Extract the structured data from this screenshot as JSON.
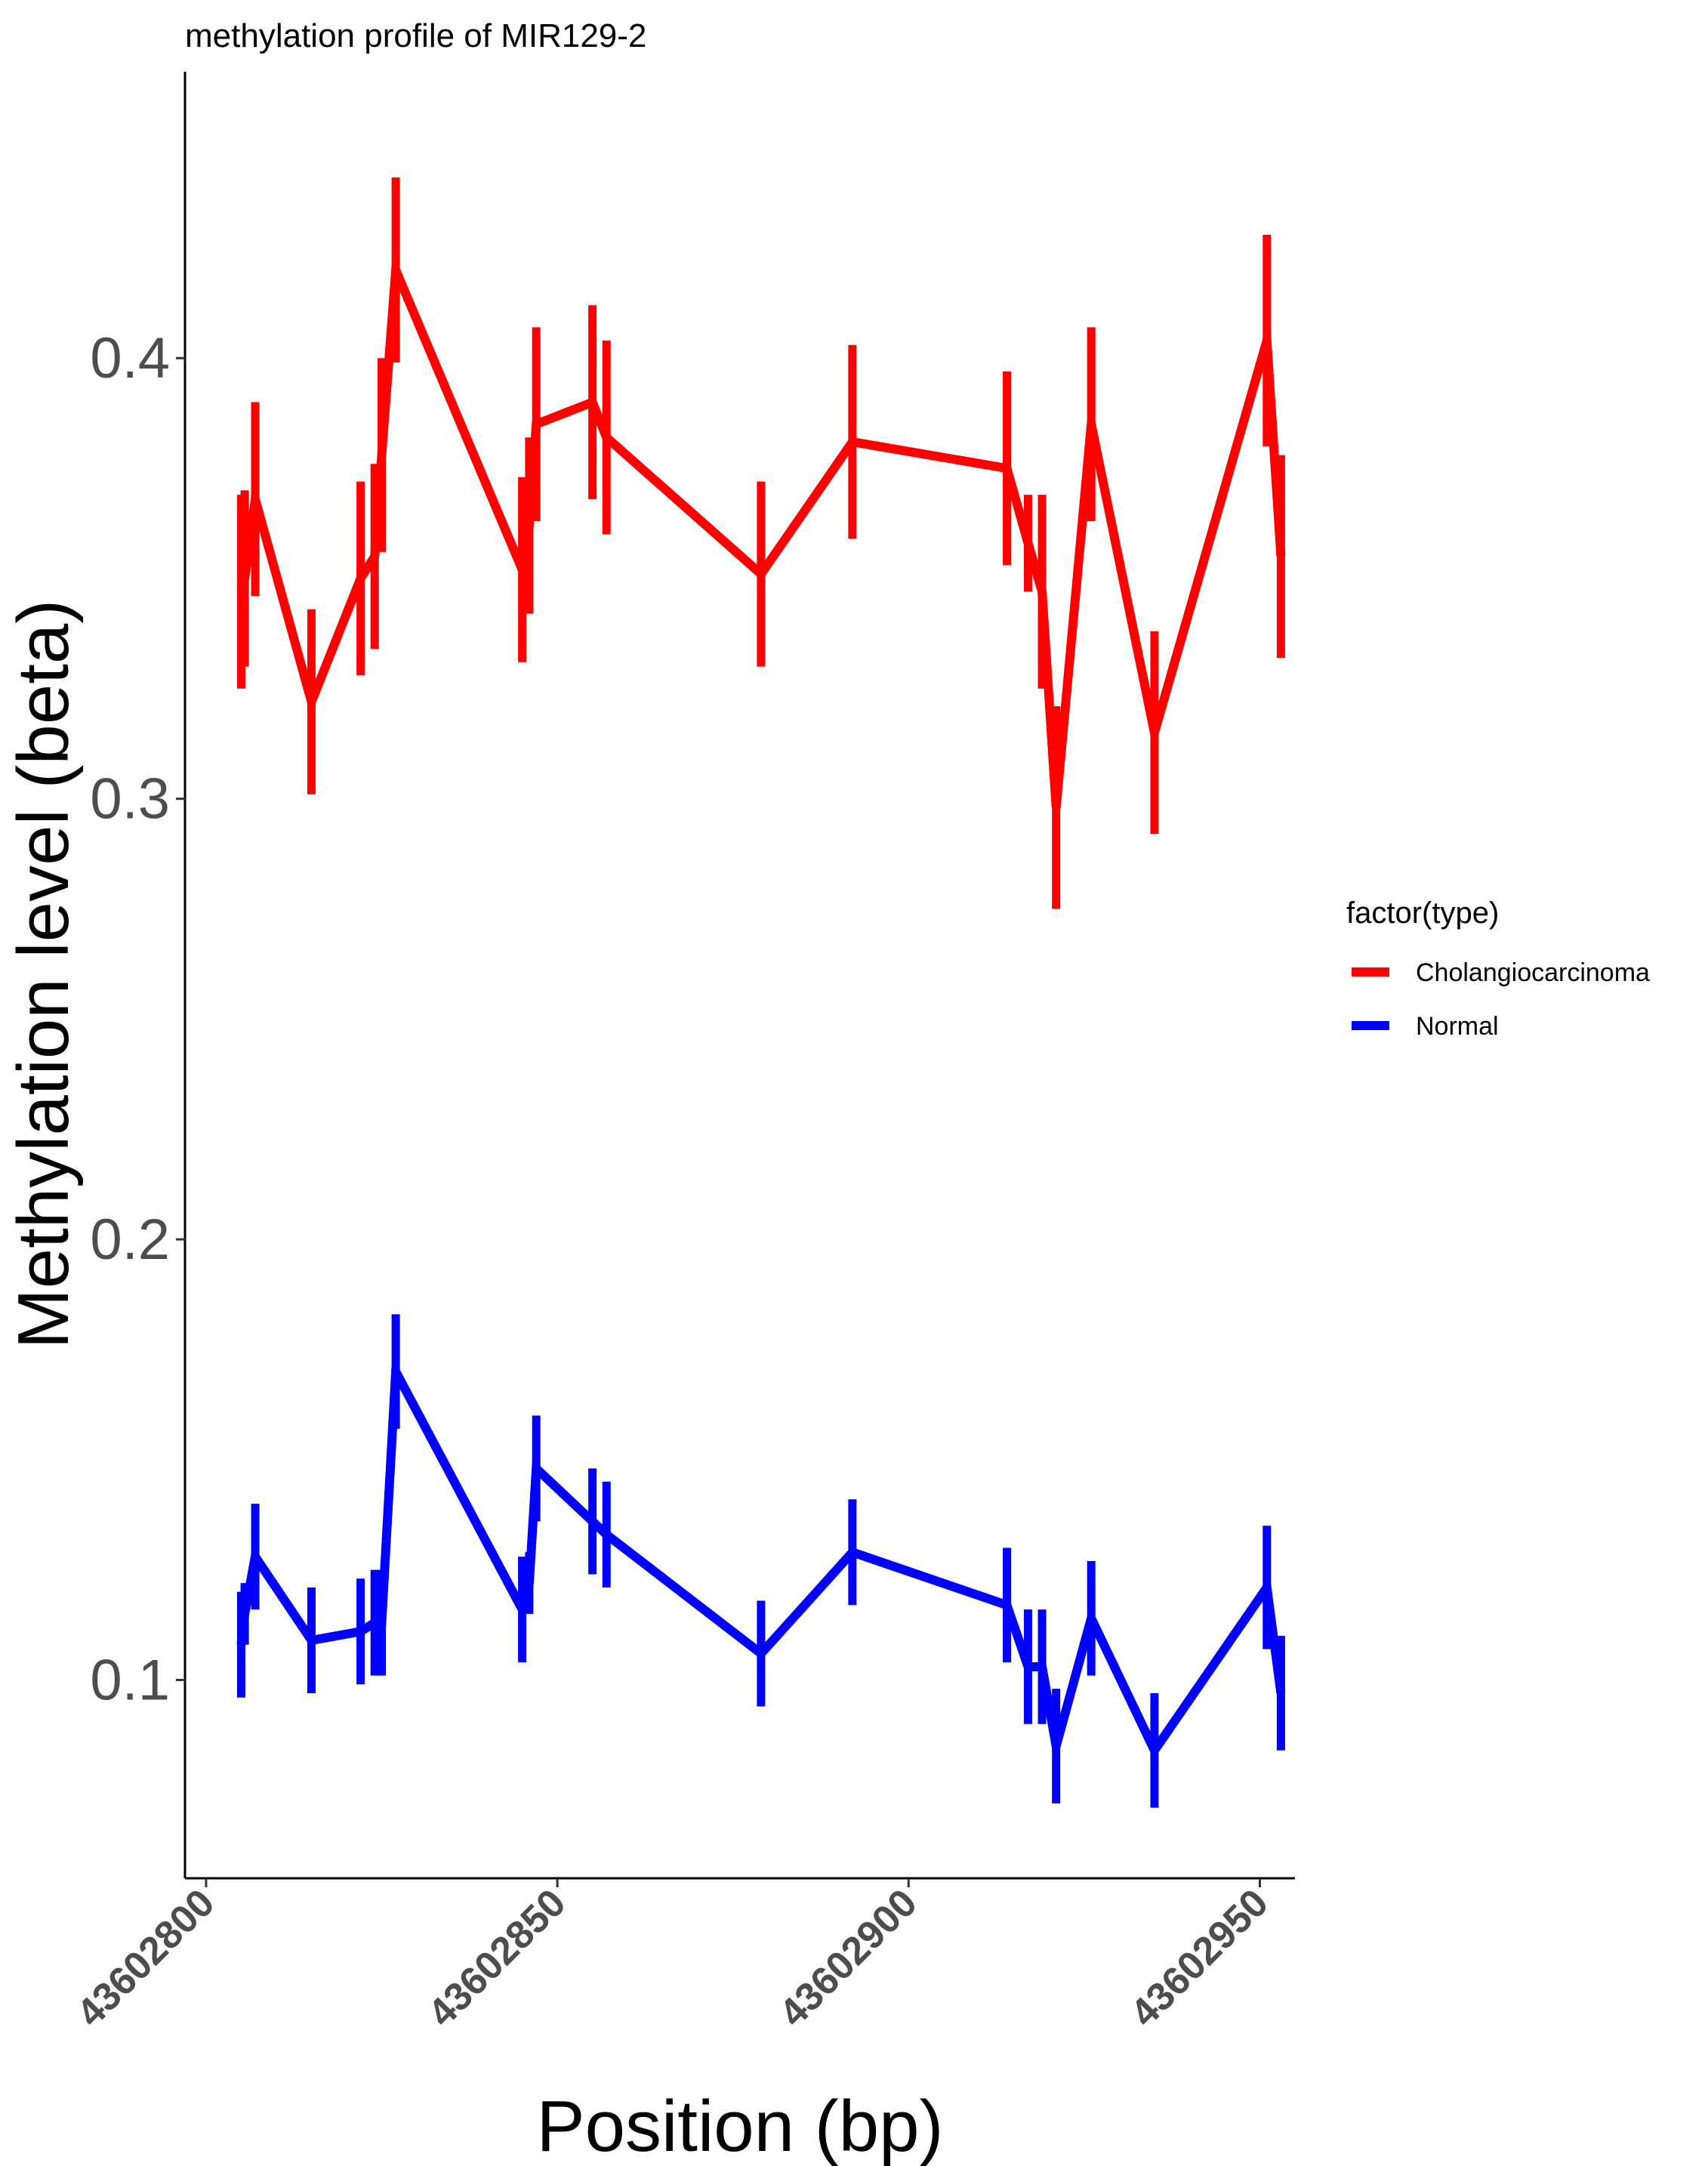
{
  "chart_data": {
    "type": "line",
    "title": "methylation profile of MIR129-2",
    "xlabel": "Position (bp)",
    "ylabel": "Methylation level (beta)",
    "xlim": [
      43602797,
      43602955
    ],
    "ylim": [
      0.055,
      0.465
    ],
    "x_ticks": [
      43602800,
      43602850,
      43602900,
      43602950
    ],
    "y_ticks": [
      0.1,
      0.2,
      0.3,
      0.4
    ],
    "grid": false,
    "legend": {
      "title": "factor(type)",
      "position": "right"
    },
    "x": [
      43602805,
      43602805.5,
      43602807,
      43602815,
      43602822,
      43602824,
      43602825,
      43602827,
      43602845,
      43602846,
      43602847,
      43602855,
      43602857,
      43602879,
      43602892,
      43602914,
      43602917,
      43602919,
      43602921,
      43602926,
      43602935,
      43602951,
      43602953
    ],
    "series": [
      {
        "name": "Cholangiocarcinoma",
        "color": "#ff0000",
        "values": [
          0.347,
          0.35,
          0.368,
          0.322,
          0.35,
          0.355,
          0.378,
          0.42,
          0.352,
          0.362,
          0.385,
          0.39,
          0.382,
          0.351,
          0.381,
          0.375,
          0.358,
          0.347,
          0.298,
          0.385,
          0.315,
          0.404,
          0.355
        ],
        "errors": [
          0.022,
          0.02,
          0.022,
          0.021,
          0.022,
          0.021,
          0.022,
          0.021,
          0.021,
          0.02,
          0.022,
          0.022,
          0.022,
          0.021,
          0.022,
          0.022,
          0.011,
          0.022,
          0.023,
          0.022,
          0.023,
          0.024,
          0.023
        ]
      },
      {
        "name": "Normal",
        "color": "#0000ff",
        "values": [
          0.108,
          0.115,
          0.128,
          0.109,
          0.111,
          0.113,
          0.113,
          0.17,
          0.116,
          0.122,
          0.148,
          0.136,
          0.133,
          0.106,
          0.129,
          0.117,
          0.103,
          0.103,
          0.085,
          0.114,
          0.084,
          0.121,
          0.097
        ],
        "errors": [
          0.012,
          0.007,
          0.012,
          0.012,
          0.012,
          0.012,
          0.012,
          0.013,
          0.012,
          0.007,
          0.012,
          0.012,
          0.012,
          0.012,
          0.012,
          0.013,
          0.013,
          0.013,
          0.013,
          0.013,
          0.013,
          0.014,
          0.013
        ]
      }
    ]
  }
}
